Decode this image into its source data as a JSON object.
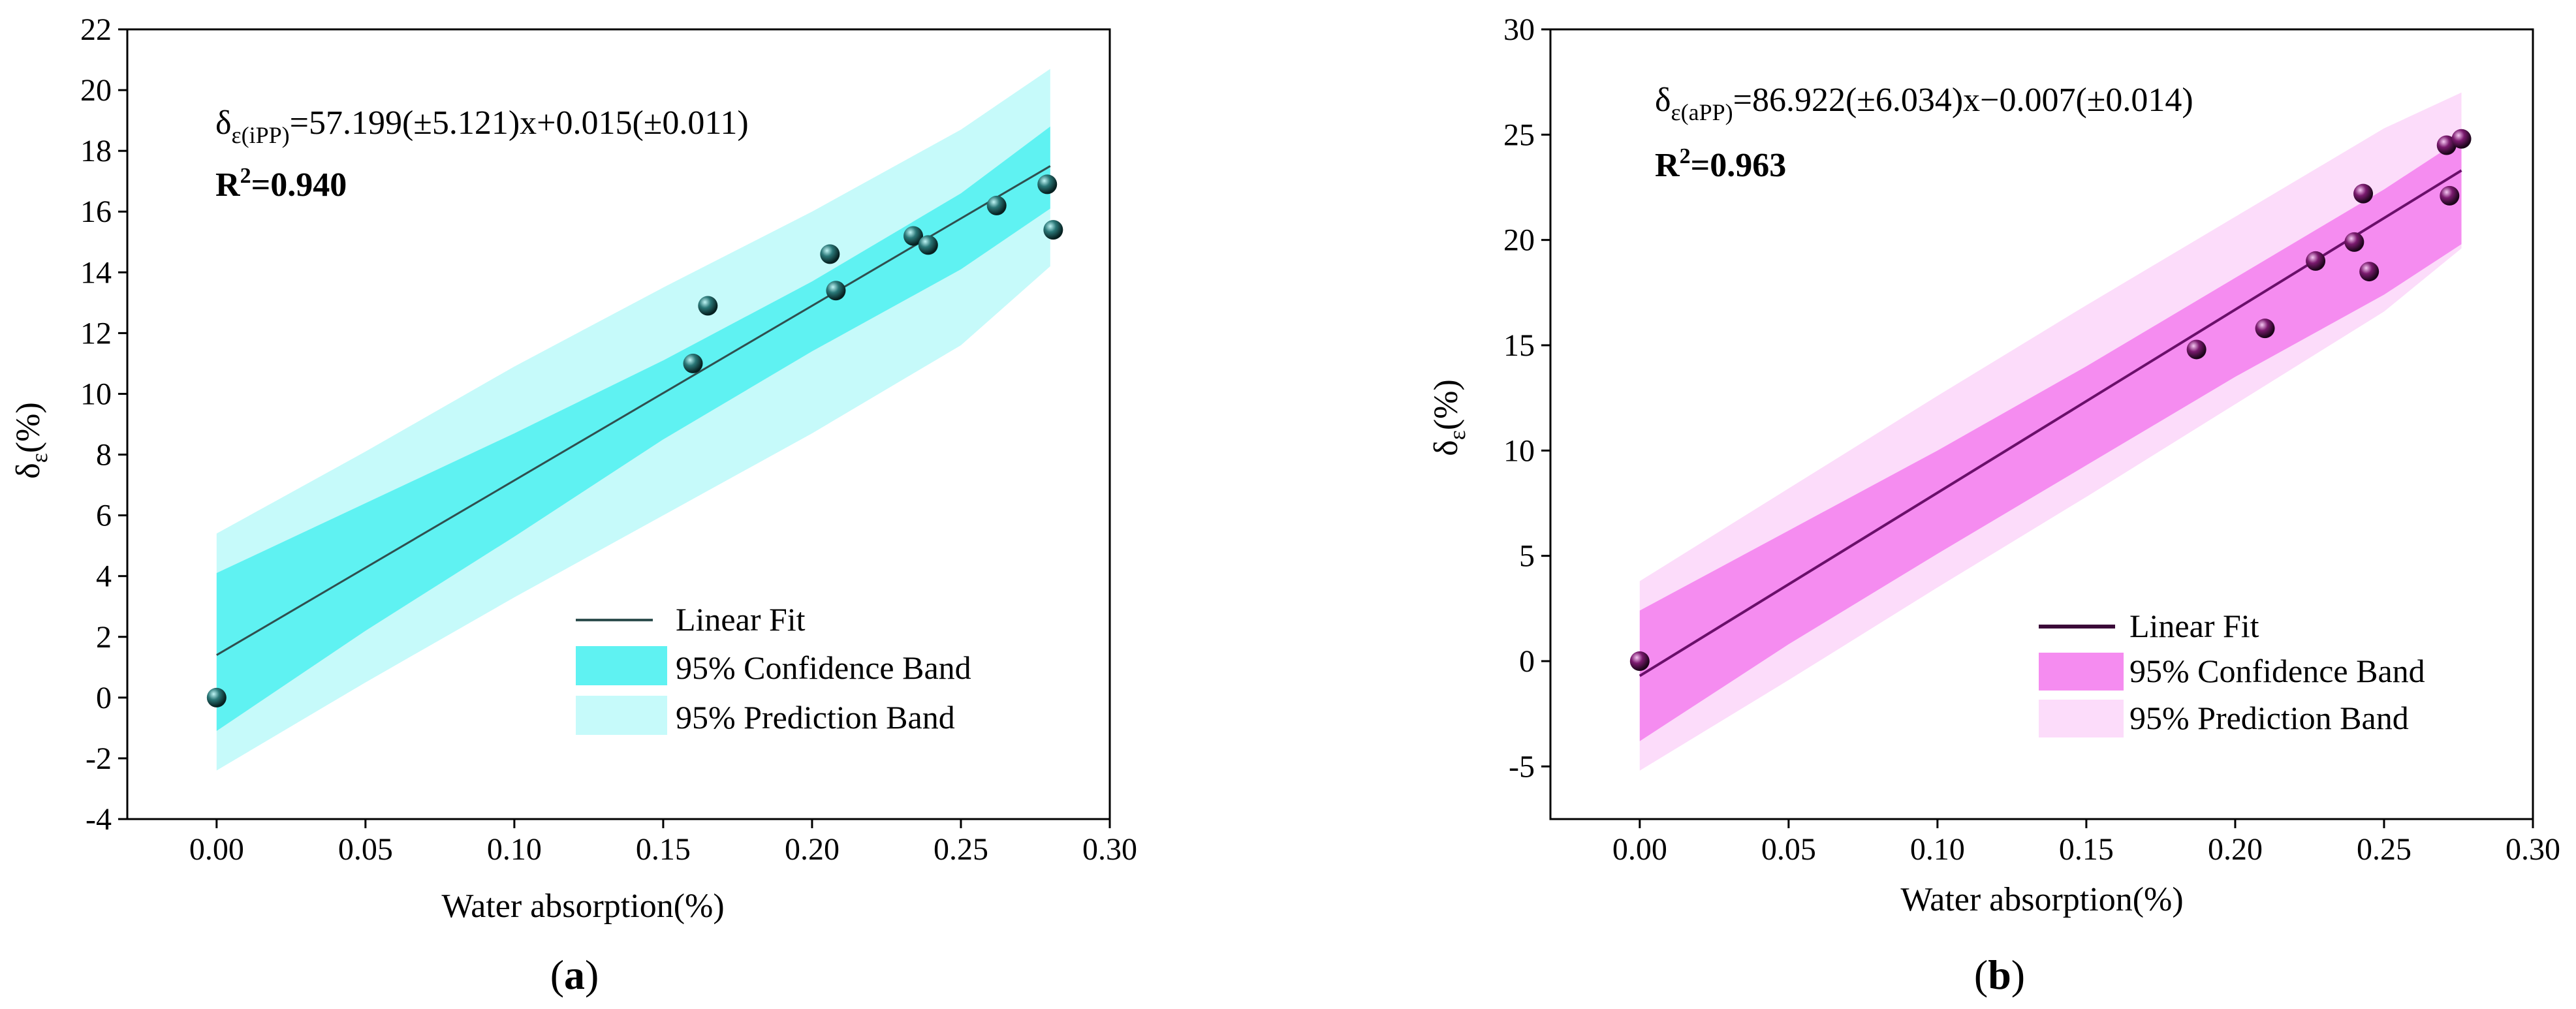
{
  "chart_data": [
    {
      "type": "scatter",
      "panel_label": "a",
      "xlabel": "Water absorption(%)",
      "ylabel_main": "δ",
      "ylabel_sub": "ε",
      "ylabel_suffix": "(%)",
      "xlim": [
        -0.03,
        0.3
      ],
      "ylim": [
        -4,
        22
      ],
      "xticks": [
        "0.00",
        "0.05",
        "0.10",
        "0.15",
        "0.20",
        "0.25",
        "0.30"
      ],
      "yticks": [
        "-4",
        "-2",
        "0",
        "2",
        "4",
        "6",
        "8",
        "10",
        "12",
        "14",
        "16",
        "18",
        "20",
        "22"
      ],
      "equation": {
        "prefix": "δ",
        "sub": "ε(iPP)",
        "body": "=57.199(±5.121)x+0.015(±0.011)"
      },
      "r2": {
        "label": "R",
        "sup": "2",
        "value": "=0.940"
      },
      "fit": {
        "x": [
          0.0,
          0.28
        ],
        "y": [
          1.4,
          17.5
        ]
      },
      "confidence_band": {
        "x": [
          0.0,
          0.05,
          0.1,
          0.15,
          0.2,
          0.25,
          0.28
        ],
        "upper": [
          4.1,
          6.4,
          8.7,
          11.1,
          13.7,
          16.6,
          18.8
        ],
        "lower": [
          -1.1,
          2.2,
          5.3,
          8.5,
          11.4,
          14.1,
          16.1
        ]
      },
      "prediction_band": {
        "x": [
          0.0,
          0.05,
          0.1,
          0.15,
          0.2,
          0.25,
          0.28
        ],
        "upper": [
          5.4,
          8.1,
          10.9,
          13.5,
          16.0,
          18.7,
          20.7
        ],
        "lower": [
          -2.4,
          0.5,
          3.3,
          6.0,
          8.7,
          11.6,
          14.2
        ]
      },
      "points": [
        {
          "x": 0.0,
          "y": 0.0
        },
        {
          "x": 0.16,
          "y": 11.0
        },
        {
          "x": 0.165,
          "y": 12.9
        },
        {
          "x": 0.206,
          "y": 14.6
        },
        {
          "x": 0.208,
          "y": 13.4
        },
        {
          "x": 0.234,
          "y": 15.2
        },
        {
          "x": 0.239,
          "y": 14.9
        },
        {
          "x": 0.262,
          "y": 16.2
        },
        {
          "x": 0.279,
          "y": 16.9
        },
        {
          "x": 0.281,
          "y": 15.4
        }
      ],
      "legend": [
        {
          "label": "Linear Fit"
        },
        {
          "label": "95% Confidence Band"
        },
        {
          "label": "95% Prediction Band"
        }
      ],
      "colors": {
        "fit": "#2f4f4f",
        "confidence": "#5ff2f2",
        "prediction": "#c6fafa",
        "point": "#1f5f5f"
      }
    },
    {
      "type": "scatter",
      "panel_label": "b",
      "xlabel": "Water absorption(%)",
      "ylabel_main": "δ",
      "ylabel_sub": "ε",
      "ylabel_suffix": "(%)",
      "xlim": [
        -0.03,
        0.3
      ],
      "ylim": [
        -7.5,
        30
      ],
      "xticks": [
        "0.00",
        "0.05",
        "0.10",
        "0.15",
        "0.20",
        "0.25",
        "0.30"
      ],
      "yticks": [
        "-5",
        "0",
        "5",
        "10",
        "15",
        "20",
        "25",
        "30"
      ],
      "equation": {
        "prefix": "δ",
        "sub": "ε(aPP)",
        "body": "=86.922(±6.034)x−0.007(±0.014)"
      },
      "r2": {
        "label": "R",
        "sup": "2",
        "value": "=0.963"
      },
      "fit": {
        "x": [
          0.0,
          0.276
        ],
        "y": [
          -0.7,
          23.3
        ]
      },
      "confidence_band": {
        "x": [
          0.0,
          0.05,
          0.1,
          0.15,
          0.2,
          0.25,
          0.276
        ],
        "upper": [
          2.4,
          6.2,
          10.0,
          14.0,
          18.2,
          22.4,
          24.8
        ],
        "lower": [
          -3.8,
          0.8,
          5.1,
          9.3,
          13.5,
          17.4,
          19.8
        ]
      },
      "prediction_band": {
        "x": [
          0.0,
          0.05,
          0.1,
          0.15,
          0.2,
          0.25,
          0.276
        ],
        "upper": [
          3.8,
          8.2,
          12.6,
          16.9,
          21.1,
          25.3,
          27.0
        ],
        "lower": [
          -5.2,
          -0.9,
          3.5,
          7.8,
          12.2,
          16.6,
          19.6
        ]
      },
      "points": [
        {
          "x": 0.0,
          "y": 0.0
        },
        {
          "x": 0.187,
          "y": 14.8
        },
        {
          "x": 0.21,
          "y": 15.8
        },
        {
          "x": 0.227,
          "y": 19.0
        },
        {
          "x": 0.24,
          "y": 19.9
        },
        {
          "x": 0.243,
          "y": 22.2
        },
        {
          "x": 0.245,
          "y": 18.5
        },
        {
          "x": 0.271,
          "y": 24.5
        },
        {
          "x": 0.272,
          "y": 22.1
        },
        {
          "x": 0.276,
          "y": 24.8
        }
      ],
      "legend": [
        {
          "label": "Linear Fit"
        },
        {
          "label": "95% Confidence Band"
        },
        {
          "label": "95% Prediction Band"
        }
      ],
      "colors": {
        "fit": "#6a0f6a",
        "confidence": "#f58cf0",
        "prediction": "#fcdcfa",
        "point": "#5a1050"
      }
    }
  ]
}
